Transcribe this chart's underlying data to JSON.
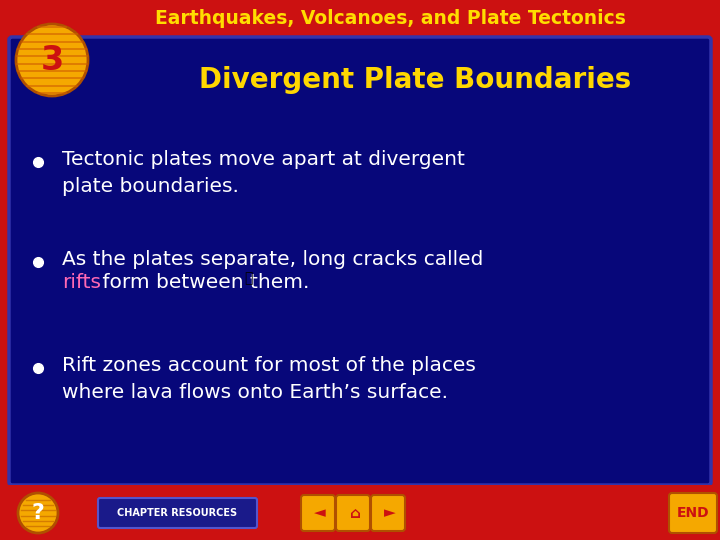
{
  "title": "Earthquakes, Volcanoes, and Plate Tectonics",
  "slide_number": "3",
  "subtitle": "Divergent Plate Boundaries",
  "bullet1": "Tectonic plates move apart at divergent\nplate boundaries.",
  "bullet2_pre": "As the plates separate, long cracks called\n",
  "bullet2_rift": "rifts",
  "bullet2_post": " form between them.",
  "bullet3": "Rift zones account for most of the places\nwhere lava flows onto Earth’s surface.",
  "bg_color": "#cc1111",
  "title_text_color": "#ffdd00",
  "main_panel_color": "#07077a",
  "main_panel_edge_color": "#3333aa",
  "subtitle_color": "#ffd700",
  "number_circle_fill": "#f5a800",
  "number_circle_stripe": "#d06000",
  "number_text_color": "#cc1111",
  "bullet_color": "#ffffff",
  "rift_color": "#ff69b4",
  "bottom_bar_color": "#cc1111",
  "q_fill": "#f5a800",
  "q_text": "#ffffff",
  "chap_btn_fill": "#1a1a8a",
  "chap_btn_text": "#ffffff",
  "nav_fill": "#f5a800",
  "nav_text": "#cc1111",
  "end_fill": "#f5a800",
  "end_text": "#cc1111",
  "figsize": [
    7.2,
    5.4
  ],
  "dpi": 100
}
